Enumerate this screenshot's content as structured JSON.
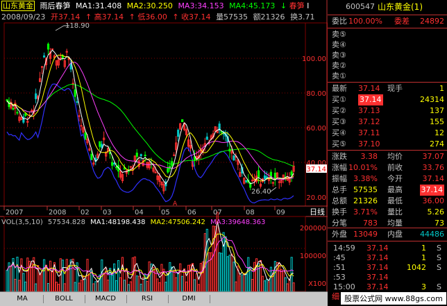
{
  "header": {
    "stock_name": "山东黄金",
    "indicator_name": "雨后春笋",
    "ma1": "MA1:31.408",
    "ma2": "MA2:30.250",
    "ma3": "MA3:34.153",
    "ma4": "MA4:45.173",
    "arrow": "↓",
    "signal": "春笋",
    "signal_suffix": "I",
    "date": "2008/09/23",
    "open": "开37.14",
    "high": "高37.14",
    "low": "低36.00",
    "close": "收37.14",
    "volume": "量57535",
    "amount": "额21326",
    "turnover": "换3.71"
  },
  "main_chart": {
    "y_ticks": [
      "100.00",
      "80.00",
      "60.00",
      "40.00",
      "20.00"
    ],
    "high_label": "118.90",
    "low_label": "26.40",
    "current_price": "37.14",
    "x_ticks": [
      "2007",
      "2008",
      "02",
      "03",
      "04",
      "05",
      "06",
      "07",
      "08",
      "09"
    ],
    "axis_toggle": "日线",
    "marker": "A"
  },
  "volume_chart": {
    "title": "VOL(3,5,10)",
    "vol": "57534.828",
    "ma1": "MA1:48198.438",
    "ma2": "MA2:47506.242",
    "ma3": "MA3:39648.363",
    "y_ticks": [
      "200000",
      "100000"
    ],
    "unit": "X100"
  },
  "tabs": [
    "MA",
    "BOLL",
    "MACD",
    "RSI",
    "DMI"
  ],
  "panel": {
    "code": "600547",
    "name": "山东黄金(1)",
    "weibi_label": "委比",
    "weibi": "100.00%",
    "weicha_label": "委差",
    "weicha": "24892",
    "sells": [
      "卖⑤",
      "卖④",
      "卖③",
      "卖②",
      "卖①"
    ],
    "latest_label": "最新",
    "latest": "37.14",
    "xianshou_label": "现手",
    "xianshou": "1",
    "buys": [
      {
        "label": "买①",
        "price": "37.14",
        "vol": "24314"
      },
      {
        "label": "买②",
        "price": "37.13",
        "vol": "137"
      },
      {
        "label": "买③",
        "price": "37.12",
        "vol": "155"
      },
      {
        "label": "买④",
        "price": "37.11",
        "vol": "12"
      },
      {
        "label": "买⑤",
        "price": "37.10",
        "vol": "274"
      }
    ],
    "stats": [
      {
        "l1": "涨跌",
        "v1": "3.38",
        "l2": "均价",
        "v2": "37.07"
      },
      {
        "l1": "涨幅",
        "v1": "10.01%",
        "l2": "前收",
        "v2": "33.76"
      },
      {
        "l1": "振幅",
        "v1": "3.38%",
        "l2": "今开",
        "v2": "37.14"
      },
      {
        "l1": "总手",
        "v1": "57535",
        "l2": "最高",
        "v2": "37.14"
      },
      {
        "l1": "总额",
        "v1": "21326",
        "l2": "最低",
        "v2": "36.00"
      },
      {
        "l1": "换手",
        "v1": "3.71%",
        "l2": "量比",
        "v2": "5.26"
      },
      {
        "l1": "分笔",
        "v1": "783",
        "l2": "均量",
        "v2": "73"
      }
    ],
    "waipan_label": "外盘",
    "waipan": "13049",
    "neipan_label": "内盘",
    "neipan": "44486",
    "ticks": [
      {
        "time": "14:59",
        "price": "37.14",
        "vol": "1",
        "side": "S"
      },
      {
        "time": ":45",
        "price": "37.14",
        "vol": "1",
        "side": "S"
      },
      {
        "time": ":51",
        "price": "37.14",
        "vol": "1042",
        "side": "S"
      },
      {
        "time": ":53",
        "price": "37.14",
        "vol": "",
        "side": ""
      },
      {
        "time": "15:00",
        "price": "37.14",
        "vol": "3",
        "side": "S"
      }
    ],
    "detail_label": "细价"
  },
  "watermark": "股票公式网 www.88gs.com",
  "colors": {
    "up": "#ff3030",
    "down": "#00c8c8",
    "ma1": "#ffffff",
    "ma2": "#ffff00",
    "ma3": "#ff40ff",
    "ma4": "#00ff00",
    "blue_line": "#3030ff",
    "grid": "#800000",
    "label_red": "#ff3030"
  }
}
